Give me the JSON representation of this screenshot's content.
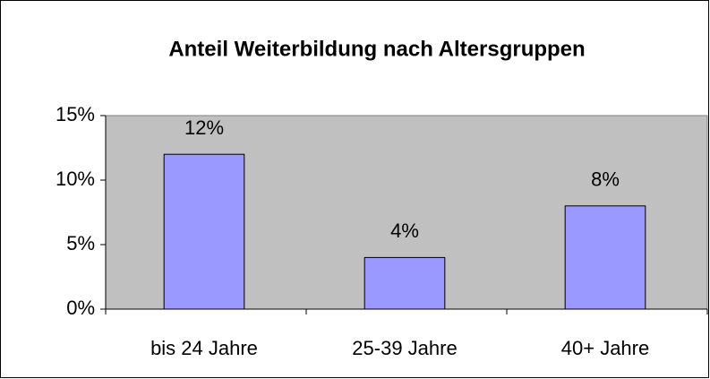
{
  "chart_data": {
    "type": "bar",
    "title": "Anteil Weiterbildung nach Altersgruppen",
    "categories": [
      "bis 24 Jahre",
      "25-39 Jahre",
      "40+ Jahre"
    ],
    "values": [
      12,
      4,
      8
    ],
    "value_labels": [
      "12%",
      "4%",
      "8%"
    ],
    "color": "#9999ff",
    "ylim": [
      0,
      15
    ],
    "yticks": [
      {
        "value": 0,
        "label": "0%"
      },
      {
        "value": 5,
        "label": "5%"
      },
      {
        "value": 10,
        "label": "10%"
      },
      {
        "value": 15,
        "label": "15%"
      }
    ],
    "grid": false
  }
}
